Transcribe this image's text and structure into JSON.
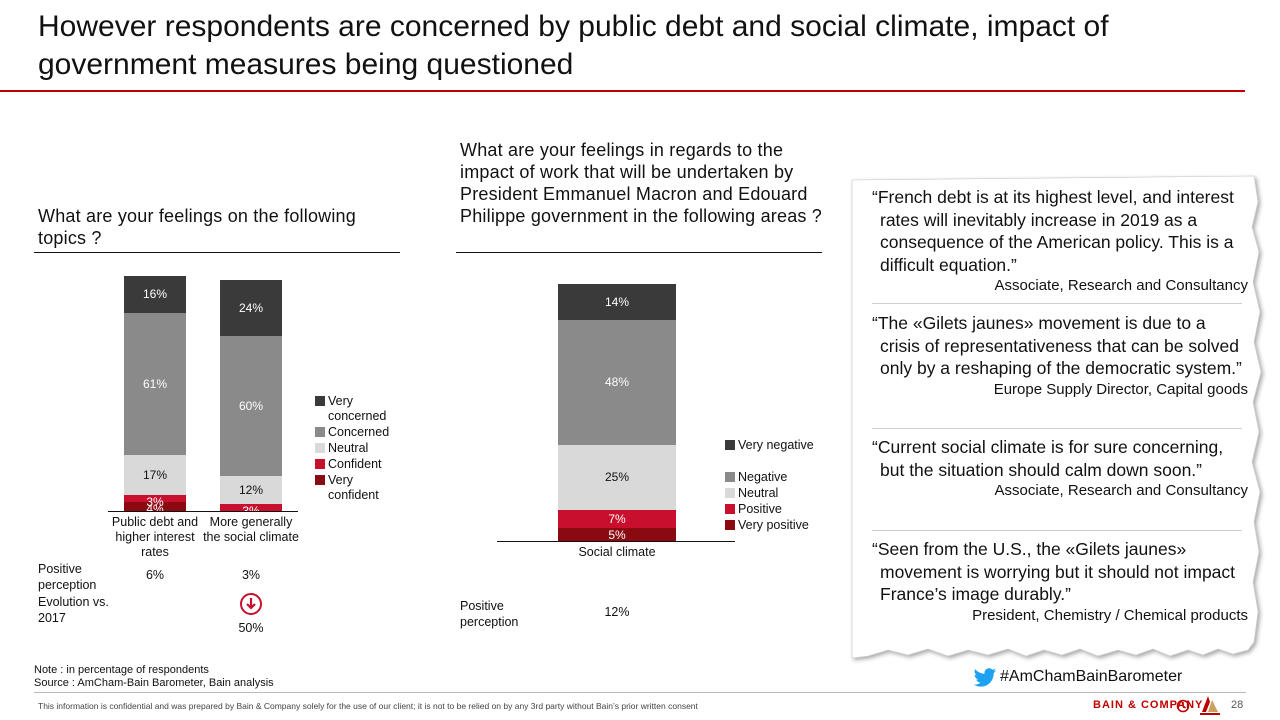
{
  "title": "However respondents are concerned by public debt and social climate, impact of government measures being questioned",
  "chart_data": [
    {
      "type": "bar",
      "stacked": true,
      "title": "What are your feelings on the following topics ?",
      "categories": [
        "Public debt and higher interest rates",
        "More generally the social climate"
      ],
      "series": [
        {
          "name": "Very concerned",
          "values": [
            16,
            24
          ],
          "labels": [
            "16%",
            "24%"
          ],
          "color": "#3a3a3a",
          "text_color": "#ffffff"
        },
        {
          "name": "Concerned",
          "values": [
            61,
            60
          ],
          "labels": [
            "61%",
            "60%"
          ],
          "color": "#8a8a8a",
          "text_color": "#ffffff"
        },
        {
          "name": "Neutral",
          "values": [
            17,
            12
          ],
          "labels": [
            "17%",
            "12%"
          ],
          "color": "#d9d9d9",
          "text_color": "#111111"
        },
        {
          "name": "Confident",
          "values": [
            3,
            3
          ],
          "labels": [
            "3%",
            "3%"
          ],
          "color": "#c8102e",
          "text_color": "#ffffff"
        },
        {
          "name": "Very confident",
          "values": [
            4,
            0
          ],
          "labels": [
            "4%",
            ""
          ],
          "color": "#8b0a12",
          "text_color": "#ffffff"
        }
      ],
      "rows": [
        {
          "label": "Positive perception",
          "values": [
            "6%",
            "3%"
          ]
        },
        {
          "label": "Evolution vs. 2017",
          "values": [
            "",
            "50%"
          ],
          "trend": [
            null,
            "down"
          ]
        }
      ],
      "legend_position": "right"
    },
    {
      "type": "bar",
      "stacked": true,
      "title": "What are your feelings in regards to the impact of work that will be undertaken by President Emmanuel Macron and Edouard Philippe government in the following areas ?",
      "categories": [
        "Social climate"
      ],
      "series": [
        {
          "name": "Very negative",
          "values": [
            14
          ],
          "labels": [
            "14%"
          ],
          "color": "#3a3a3a",
          "text_color": "#ffffff"
        },
        {
          "name": "Negative",
          "values": [
            48
          ],
          "labels": [
            "48%"
          ],
          "color": "#8a8a8a",
          "text_color": "#ffffff"
        },
        {
          "name": "Neutral",
          "values": [
            25
          ],
          "labels": [
            "25%"
          ],
          "color": "#d9d9d9",
          "text_color": "#111111"
        },
        {
          "name": "Positive",
          "values": [
            7
          ],
          "labels": [
            "7%"
          ],
          "color": "#c8102e",
          "text_color": "#ffffff"
        },
        {
          "name": "Very positive",
          "values": [
            5
          ],
          "labels": [
            "5%"
          ],
          "color": "#8b0a12",
          "text_color": "#ffffff"
        }
      ],
      "rows": [
        {
          "label": "Positive perception",
          "values": [
            "12%"
          ]
        }
      ],
      "legend_position": "right"
    }
  ],
  "quotes": [
    {
      "text": "“French debt is at its highest level, and interest rates will inevitably increase in 2019 as a consequence of the American policy. This is a difficult equation.”",
      "author": "Associate, Research and Consultancy"
    },
    {
      "text": "“The «Gilets jaunes» movement is due to a crisis of representativeness that can be solved only by a reshaping of the democratic system.”",
      "author": "Europe Supply Director, Capital goods"
    },
    {
      "text": "“Current social climate is for sure concerning, but the situation should calm down soon.”",
      "author": "Associate, Research and Consultancy"
    },
    {
      "text": "“Seen from the U.S., the  «Gilets jaunes» movement is worrying but it should not impact France’s image durably.”",
      "author": "President, Chemistry / Chemical products"
    }
  ],
  "hashtag": "#AmChamBainBarometer",
  "note": "Note : in percentage of respondents",
  "source": "Source : AmCham-Bain Barometer, Bain analysis",
  "disclaimer": "This information is confidential and was prepared by Bain & Company solely for the use of our client; it is not to be relied on by any 3rd party without Bain’s prior written consent",
  "brand": "BAIN & COMPANY",
  "page_number": "28",
  "icons": {
    "hashtag": "twitter-bird-icon",
    "trend_down": "arrow-down-circle-icon",
    "brand": "bain-logo-icon",
    "partner": "amcham-logo-icon"
  },
  "accent_color": "#c00000"
}
